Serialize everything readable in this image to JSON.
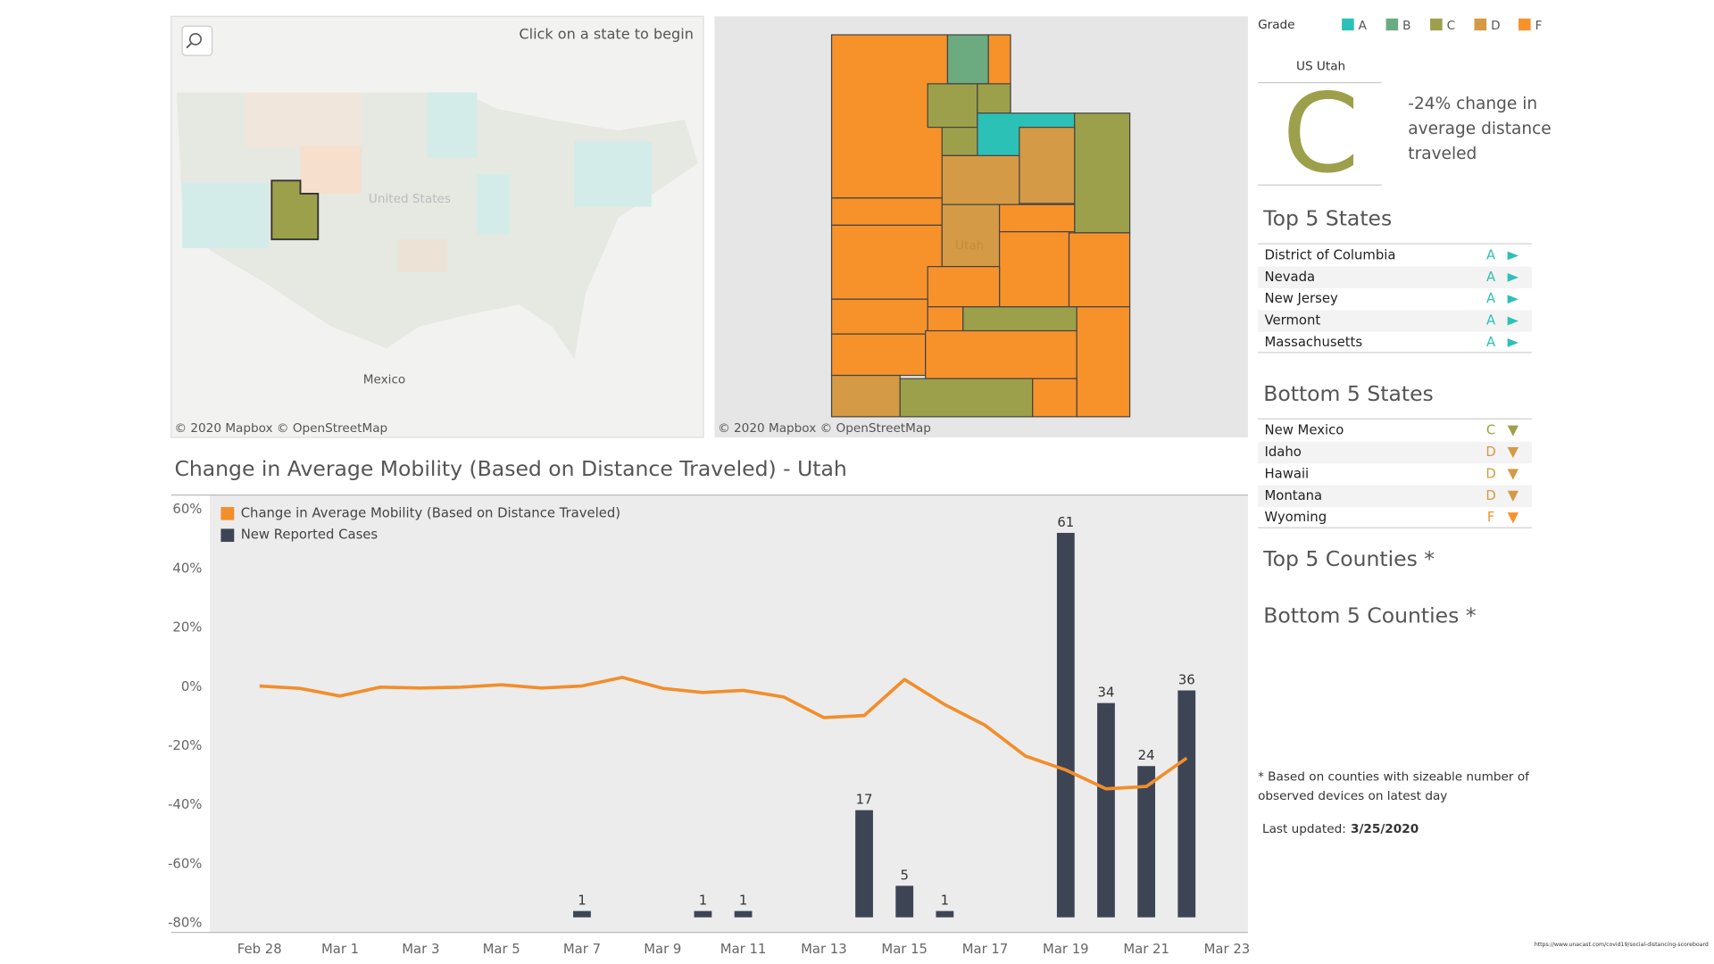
{
  "search_hint": "Click on a state to begin",
  "map_credits": [
    "© 2020 Mapbox © OpenStreetMap",
    "© 2020 Mapbox © OpenStreetMap"
  ],
  "map_labels": {
    "country": "United States",
    "neighbor": "Mexico",
    "state": "Utah"
  },
  "grade_legend": {
    "title": "Grade",
    "grades": [
      {
        "label": "A",
        "color": "#2cc1b6"
      },
      {
        "label": "B",
        "color": "#6cab7f"
      },
      {
        "label": "C",
        "color": "#9da04b"
      },
      {
        "label": "D",
        "color": "#d49a45"
      },
      {
        "label": "F",
        "color": "#f7922b"
      }
    ]
  },
  "scorecard": {
    "region": "US Utah",
    "grade": "C",
    "summary_lines": [
      "-24% change in",
      "average distance",
      "traveled"
    ]
  },
  "top_states": {
    "title": "Top 5 States",
    "rows": [
      [
        "District of Columbia",
        "A"
      ],
      [
        "Nevada",
        "A"
      ],
      [
        "New Jersey",
        "A"
      ],
      [
        "Vermont",
        "A"
      ],
      [
        "Massachusetts",
        "A"
      ]
    ]
  },
  "bottom_states": {
    "title": "Bottom 5 States",
    "rows": [
      [
        "New Mexico",
        "C"
      ],
      [
        "Idaho",
        "D"
      ],
      [
        "Hawaii",
        "D"
      ],
      [
        "Montana",
        "D"
      ],
      [
        "Wyoming",
        "F"
      ]
    ]
  },
  "top_counties": "Top 5 Counties *",
  "bottom_counties": "Bottom 5 Counties *",
  "footnote_lines": [
    "* Based on counties with sizeable number of",
    "observed devices on latest day"
  ],
  "last_updated": {
    "label": "Last updated:",
    "value": "3/25/2020"
  },
  "source_url": "https://www.unacast.com/covid19/social-distancing-scoreboard",
  "chart_data": {
    "type": "bar_line",
    "title": "Change in Average Mobility (Based on Distance Traveled) -  Utah",
    "categories": [
      "Feb 28",
      null,
      "Mar 1",
      null,
      "Mar 3",
      null,
      "Mar 5",
      null,
      "Mar 7",
      null,
      "Mar 9",
      null,
      "Mar 11",
      null,
      "Mar 13",
      null,
      "Mar 15",
      null,
      "Mar 17",
      null,
      "Mar 19",
      null,
      "Mar 21",
      null,
      "Mar 23"
    ],
    "series": [
      {
        "name": "Change in Average Mobility (Based on Distance Traveled)",
        "type": "line",
        "color": "#f28e2b",
        "values": [
          0.4,
          -0.4,
          -3,
          0,
          -0.3,
          0,
          0.8,
          -0.3,
          0.4,
          3.3,
          -0.4,
          -1.8,
          -1.1,
          -3.3,
          -10.3,
          -9.6,
          2.6,
          -5.9,
          -12.9,
          -23.3,
          -28,
          -34.4,
          -33.6,
          -24,
          null
        ]
      },
      {
        "name": "New Reported Cases",
        "type": "bar",
        "color": "#3d4555",
        "axis": "y2",
        "values": [
          null,
          null,
          null,
          null,
          null,
          null,
          null,
          null,
          1,
          null,
          null,
          1,
          1,
          null,
          null,
          17,
          5,
          1,
          null,
          null,
          61,
          34,
          24,
          36,
          null
        ]
      }
    ],
    "ylim": [
      -83,
      65
    ],
    "yticks": [
      {
        "value": 60,
        "label": "60%"
      },
      {
        "value": 40,
        "label": "40%"
      },
      {
        "value": 20,
        "label": "20%"
      },
      {
        "value": 0,
        "label": "0%"
      },
      {
        "value": -20,
        "label": "-20%"
      },
      {
        "value": -40,
        "label": "-40%"
      },
      {
        "value": -60,
        "label": "-60%"
      },
      {
        "value": -80,
        "label": "-80%"
      }
    ],
    "y2lim": [
      -2.4,
      67
    ],
    "grid": false,
    "legend": "top-left"
  }
}
